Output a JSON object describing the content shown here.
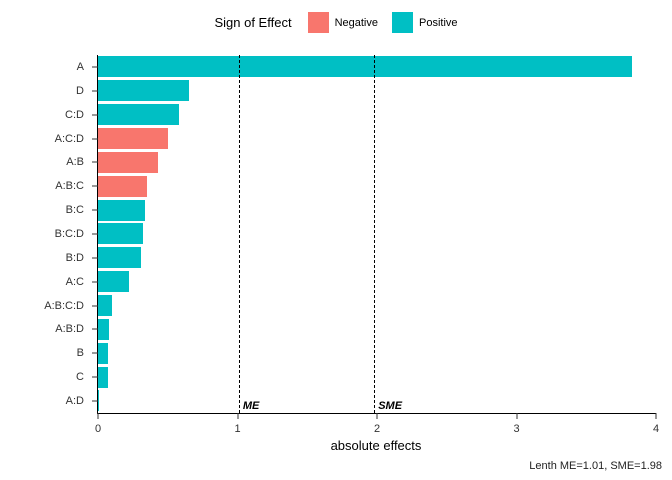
{
  "legend": {
    "title": "Sign of Effect",
    "items": [
      {
        "label": "Negative",
        "color": "#F8766D"
      },
      {
        "label": "Positive",
        "color": "#00BFC4"
      }
    ]
  },
  "caption": "Lenth ME=1.01, SME=1.98",
  "chart_data": {
    "type": "bar",
    "orientation": "horizontal",
    "title": "",
    "xlabel": "absolute effects",
    "ylabel": "",
    "xlim": [
      0,
      4
    ],
    "xticks": [
      0,
      1,
      2,
      3,
      4
    ],
    "grid": false,
    "legend_position": "top",
    "categories": [
      "A",
      "D",
      "C:D",
      "A:C:D",
      "A:B",
      "A:B:C",
      "B:C",
      "B:C:D",
      "B:D",
      "A:C",
      "A:B:C:D",
      "A:B:D",
      "B",
      "C",
      "A:D"
    ],
    "values": [
      3.83,
      0.65,
      0.58,
      0.5,
      0.43,
      0.35,
      0.34,
      0.32,
      0.31,
      0.22,
      0.1,
      0.08,
      0.07,
      0.07,
      0.01
    ],
    "signs": [
      "Positive",
      "Positive",
      "Positive",
      "Negative",
      "Negative",
      "Negative",
      "Positive",
      "Positive",
      "Positive",
      "Positive",
      "Positive",
      "Positive",
      "Positive",
      "Positive",
      "Positive"
    ],
    "colors": {
      "Negative": "#F8766D",
      "Positive": "#00BFC4"
    },
    "reference_lines": [
      {
        "label": "ME",
        "value": 1.01
      },
      {
        "label": "SME",
        "value": 1.98
      }
    ]
  }
}
